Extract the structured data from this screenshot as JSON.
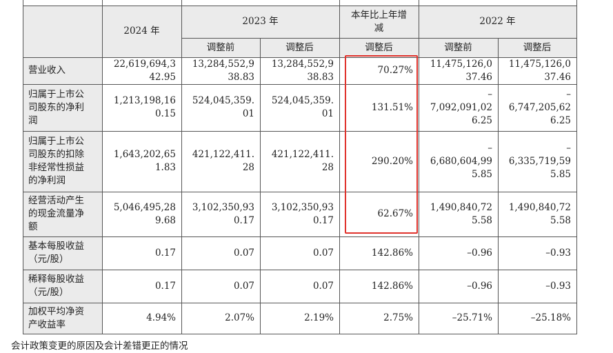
{
  "header": {
    "col_2024": "2024 年",
    "col_2023": "2023 年",
    "col_change": "本年比上年增\n减",
    "col_2022": "2022 年",
    "sub_before_2023": "调整前",
    "sub_after_2023": "调整后",
    "sub_change": "调整后",
    "sub_before_2022": "调整前",
    "sub_after_2022": "调整后"
  },
  "rows": [
    {
      "label": "营业收入",
      "v2024": "22,619,694,3\n42.95",
      "b2023": "13,284,552,9\n38.83",
      "a2023": "13,284,552,9\n38.83",
      "change": "70.27%",
      "b2022": "11,475,126,0\n37.46",
      "a2022": "11,475,126,0\n37.46"
    },
    {
      "label": "归属于上市公\n司股东的净利\n润",
      "v2024": "1,213,198,16\n0.15",
      "b2023": "524,045,359.\n01",
      "a2023": "524,045,359.\n01",
      "change": "131.51%",
      "b2022": "–\n7,092,091,02\n6.25",
      "a2022": "–\n6,747,205,62\n6.25"
    },
    {
      "label": "归属于上市公\n司股东的扣除\n非经常性损益\n的净利润",
      "v2024": "1,643,202,65\n1.83",
      "b2023": "421,122,411.\n28",
      "a2023": "421,122,411.\n28",
      "change": "290.20%",
      "b2022": "–\n6,680,604,99\n5.85",
      "a2022": "–\n6,335,719,59\n5.85"
    },
    {
      "label": "经营活动产生\n的现金流量净\n额",
      "v2024": "5,046,495,28\n9.68",
      "b2023": "3,102,350,93\n0.17",
      "a2023": "3,102,350,93\n0.17",
      "change": "62.67%",
      "b2022": "1,490,840,72\n5.58",
      "a2022": "1,490,840,72\n5.58"
    },
    {
      "label": "基本每股收益\n（元/股）",
      "v2024": "0.17",
      "b2023": "0.07",
      "a2023": "0.07",
      "change": "142.86%",
      "b2022": "–0.96",
      "a2022": "–0.93"
    },
    {
      "label": "稀释每股收益\n（元/股）",
      "v2024": "0.17",
      "b2023": "0.07",
      "a2023": "0.07",
      "change": "142.86%",
      "b2022": "–0.96",
      "a2022": "–0.93"
    },
    {
      "label": "加权平均净资\n产收益率",
      "v2024": "4.94%",
      "b2023": "2.07%",
      "a2023": "2.19%",
      "change": "2.75%",
      "b2022": "–25.71%",
      "a2022": "–25.18%"
    }
  ],
  "footer_text": "会计政策变更的原因及会计差错更正的情况",
  "colors": {
    "highlight_border": "#e0322c",
    "header_shade": "#ebebeb",
    "grid": "#555555"
  }
}
